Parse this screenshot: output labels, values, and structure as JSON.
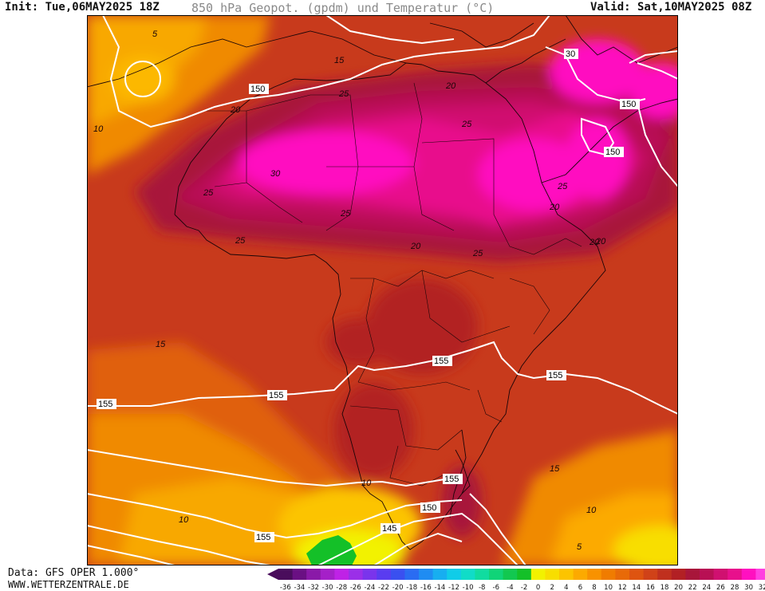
{
  "header": {
    "init": "Init: Tue,06MAY2025 18Z",
    "title": "850 hPa Geopot. (gpdm) und Temperatur (°C)",
    "valid": "Valid: Sat,10MAY2025 08Z"
  },
  "footer": {
    "source": "Data: GFS OPER 1.000°",
    "site": "WWW.WETTERZENTRALE.DE"
  },
  "legend": {
    "values": [
      -36,
      -34,
      -32,
      -30,
      -28,
      -26,
      -24,
      -22,
      -20,
      -18,
      -16,
      -14,
      -12,
      -10,
      -8,
      -6,
      -4,
      -2,
      0,
      2,
      4,
      6,
      8,
      10,
      12,
      14,
      16,
      18,
      20,
      22,
      24,
      26,
      28,
      30,
      32
    ],
    "colors": [
      "#4a0d5c",
      "#6a1083",
      "#8a19a8",
      "#a520c8",
      "#bf22e6",
      "#9b2fe8",
      "#7a34ec",
      "#5a3cf0",
      "#3a50f0",
      "#2a6cf2",
      "#1f8cf2",
      "#17aef0",
      "#10cce8",
      "#10dcc8",
      "#10dca0",
      "#10d478",
      "#12c850",
      "#14c028",
      "#f2f200",
      "#f8de00",
      "#fcc400",
      "#fcaa00",
      "#f89200",
      "#f07c00",
      "#e86a08",
      "#de5410",
      "#d04218",
      "#c0301e",
      "#b22024",
      "#a8163a",
      "#b81054",
      "#d01070",
      "#e8108c",
      "#ff10c0",
      "#ff40e0"
    ]
  },
  "map": {
    "contour_labels": [
      {
        "text": "5"
      },
      {
        "text": "15"
      },
      {
        "text": "150"
      },
      {
        "text": "20"
      },
      {
        "text": "25"
      },
      {
        "text": "30"
      },
      {
        "text": "10"
      },
      {
        "text": "25"
      },
      {
        "text": "30"
      },
      {
        "text": "150"
      },
      {
        "text": "150"
      },
      {
        "text": "25"
      },
      {
        "text": "25"
      },
      {
        "text": "20"
      },
      {
        "text": "25"
      },
      {
        "text": "25"
      },
      {
        "text": "25"
      },
      {
        "text": "20"
      },
      {
        "text": "20"
      },
      {
        "text": "20"
      },
      {
        "text": "15"
      },
      {
        "text": "155"
      },
      {
        "text": "155"
      },
      {
        "text": "155"
      },
      {
        "text": "155"
      },
      {
        "text": "15"
      },
      {
        "text": "10"
      },
      {
        "text": "155"
      },
      {
        "text": "150"
      },
      {
        "text": "10"
      },
      {
        "text": "145"
      },
      {
        "text": "155"
      },
      {
        "text": "10"
      },
      {
        "text": "5"
      },
      {
        "text": "20"
      }
    ]
  }
}
